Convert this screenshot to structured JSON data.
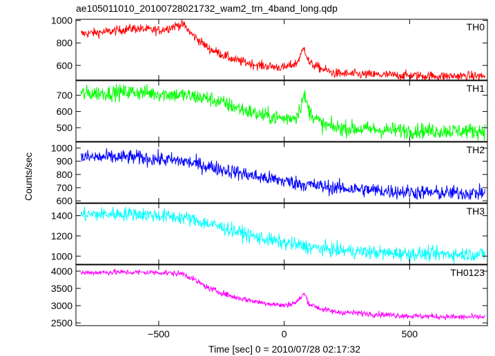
{
  "chart_data": {
    "type": "line",
    "title": "ae105011010_20100728021732_wam2_trn_4band_long.qdp",
    "xlabel": "Time [sec] 0 = 2010/07/28 02:17:32",
    "ylabel": "Counts/sec",
    "xlim": [
      -830,
      810
    ],
    "x_ticks": [
      -500,
      0,
      500
    ],
    "x_tick_labels": [
      "−500",
      "0",
      "500"
    ],
    "grid": false,
    "panels": [
      {
        "name": "TH0",
        "color": "#ff0000",
        "ylim": [
          470,
          1010
        ],
        "y_ticks": [
          600,
          800,
          1000
        ],
        "noise": 30,
        "x": [
          -810,
          -700,
          -600,
          -500,
          -420,
          -400,
          -370,
          -300,
          -200,
          -100,
          0,
          50,
          80,
          100,
          150,
          200,
          300,
          400,
          500,
          600,
          700,
          800
        ],
        "values": [
          880,
          900,
          930,
          910,
          960,
          960,
          880,
          750,
          650,
          600,
          580,
          620,
          760,
          620,
          570,
          530,
          520,
          515,
          510,
          505,
          505,
          505
        ]
      },
      {
        "name": "TH1",
        "color": "#00ff00",
        "ylim": [
          415,
          790
        ],
        "y_ticks": [
          500,
          600,
          700
        ],
        "noise": 35,
        "x": [
          -810,
          -600,
          -400,
          -300,
          -200,
          -100,
          0,
          50,
          80,
          100,
          150,
          200,
          400,
          600,
          800
        ],
        "values": [
          710,
          720,
          700,
          680,
          630,
          580,
          555,
          570,
          700,
          600,
          520,
          500,
          485,
          480,
          480
        ]
      },
      {
        "name": "TH2",
        "color": "#0000ff",
        "ylim": [
          585,
          1045
        ],
        "y_ticks": [
          600,
          700,
          800,
          900,
          1000
        ],
        "noise": 40,
        "x": [
          -810,
          -600,
          -400,
          -300,
          -200,
          -100,
          0,
          100,
          200,
          400,
          600,
          800
        ],
        "values": [
          930,
          930,
          900,
          860,
          820,
          780,
          750,
          720,
          700,
          675,
          660,
          660
        ]
      },
      {
        "name": "TH3",
        "color": "#00ffff",
        "ylim": [
          920,
          1520
        ],
        "y_ticks": [
          1000,
          1200,
          1400
        ],
        "noise": 50,
        "x": [
          -810,
          -600,
          -400,
          -300,
          -200,
          -100,
          0,
          100,
          200,
          400,
          600,
          800
        ],
        "values": [
          1410,
          1420,
          1380,
          1320,
          1250,
          1180,
          1130,
          1090,
          1060,
          1030,
          1020,
          1020
        ]
      },
      {
        "name": "TH0123",
        "color": "#ff00ff",
        "ylim": [
          2420,
          4180
        ],
        "y_ticks": [
          2500,
          3000,
          3500,
          4000
        ],
        "noise": 60,
        "x": [
          -810,
          -700,
          -500,
          -400,
          -370,
          -300,
          -200,
          -100,
          0,
          50,
          80,
          100,
          150,
          200,
          300,
          500,
          700,
          800
        ],
        "values": [
          3950,
          3970,
          3960,
          3920,
          3800,
          3500,
          3250,
          3100,
          3000,
          3100,
          3350,
          3050,
          2900,
          2820,
          2780,
          2700,
          2670,
          2670
        ]
      }
    ]
  }
}
